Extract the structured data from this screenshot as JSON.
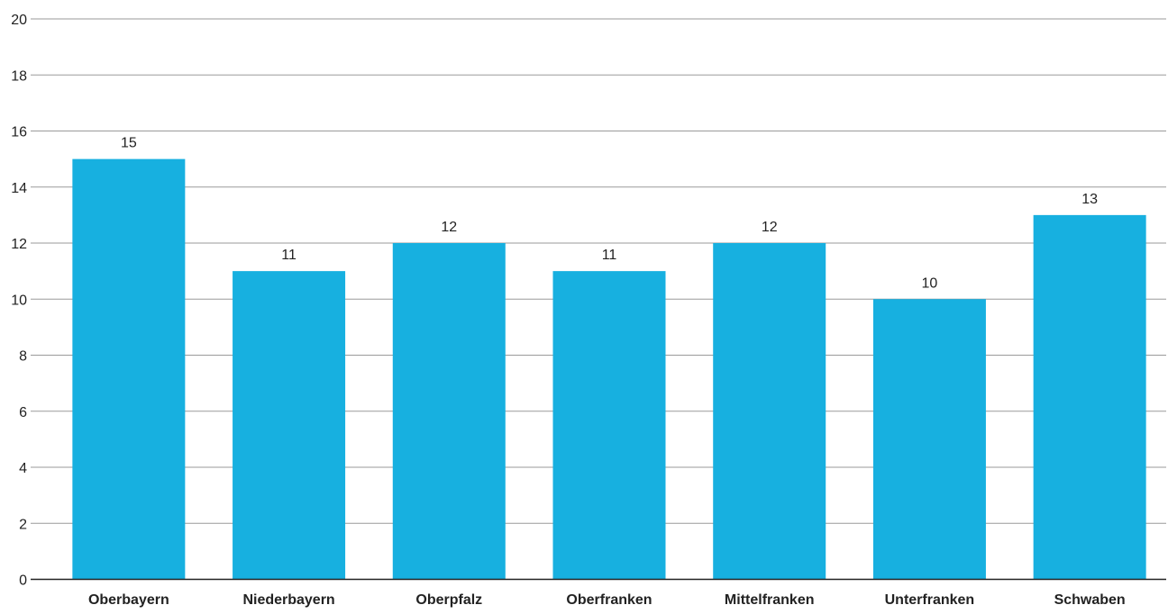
{
  "chart_data": {
    "type": "bar",
    "title": "",
    "xlabel": "",
    "ylabel": "",
    "categories": [
      "Oberbayern",
      "Niederbayern",
      "Oberpfalz",
      "Oberfranken",
      "Mittelfranken",
      "Unterfranken",
      "Schwaben"
    ],
    "values": [
      15,
      11,
      12,
      11,
      12,
      10,
      13
    ],
    "ylim": [
      0,
      20
    ],
    "yticks": [
      0,
      2,
      4,
      6,
      8,
      10,
      12,
      14,
      16,
      18,
      20
    ],
    "grid": true,
    "data_labels": true,
    "colors": {
      "bar": "#17b0e0",
      "grid": "#9a9a9a",
      "axis": "#222222",
      "text": "#222222"
    }
  }
}
